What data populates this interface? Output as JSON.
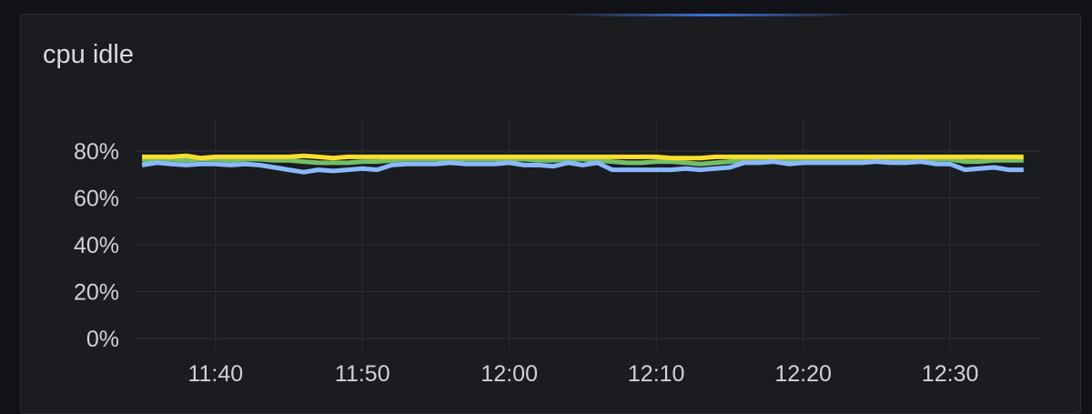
{
  "panel": {
    "title": "cpu idle"
  },
  "chart_data": {
    "type": "line",
    "title": "cpu idle",
    "xlabel": "",
    "ylabel": "",
    "ylim": [
      0,
      80
    ],
    "xlim": [
      "11:34:30",
      "12:36:15"
    ],
    "grid": true,
    "legend": "none",
    "y_ticks": [
      "0%",
      "20%",
      "40%",
      "60%",
      "80%"
    ],
    "y_tick_values": [
      0,
      20,
      40,
      60,
      80
    ],
    "x_ticks": [
      "11:40",
      "11:50",
      "12:00",
      "12:10",
      "12:20",
      "12:30"
    ],
    "x": [
      "11:35",
      "11:36",
      "11:37",
      "11:38",
      "11:39",
      "11:40",
      "11:41",
      "11:42",
      "11:43",
      "11:44",
      "11:45",
      "11:46",
      "11:47",
      "11:48",
      "11:49",
      "11:50",
      "11:51",
      "11:52",
      "11:53",
      "11:54",
      "11:55",
      "11:56",
      "11:57",
      "11:58",
      "11:59",
      "12:00",
      "12:01",
      "12:02",
      "12:03",
      "12:04",
      "12:05",
      "12:06",
      "12:07",
      "12:08",
      "12:09",
      "12:10",
      "12:11",
      "12:12",
      "12:13",
      "12:14",
      "12:15",
      "12:16",
      "12:17",
      "12:18",
      "12:19",
      "12:20",
      "12:21",
      "12:22",
      "12:23",
      "12:24",
      "12:25",
      "12:26",
      "12:27",
      "12:28",
      "12:29",
      "12:30",
      "12:31",
      "12:32",
      "12:33",
      "12:34",
      "12:35"
    ],
    "series": [
      {
        "color": "#73bf69",
        "values": [
          76,
          76.5,
          76.5,
          76,
          76.5,
          76.5,
          76,
          76.5,
          76.5,
          76,
          76,
          75.5,
          75,
          75,
          75,
          75.5,
          75.5,
          76,
          76.5,
          76.5,
          76.5,
          76.5,
          76.5,
          76.5,
          76.5,
          76.5,
          76.5,
          76,
          76,
          76.5,
          76.5,
          76,
          75.5,
          75,
          75,
          75.5,
          75.5,
          75,
          74.5,
          75,
          75.5,
          76,
          76,
          76.5,
          76,
          76.5,
          76.5,
          76.5,
          76.5,
          76.5,
          76.5,
          76.5,
          76.5,
          76.5,
          76.5,
          76.5,
          75.5,
          75.5,
          76,
          76,
          76
        ]
      },
      {
        "color": "#fade2a",
        "values": [
          77.5,
          77.5,
          77.5,
          78,
          77,
          77.5,
          77.5,
          77.5,
          77.5,
          77.5,
          77.5,
          78,
          77.5,
          77,
          77.5,
          77.5,
          77.5,
          77.5,
          77.5,
          77.5,
          77.5,
          77.5,
          77.5,
          77.5,
          77.5,
          77.5,
          77.5,
          77.5,
          77.5,
          77.5,
          77.5,
          77.5,
          77.5,
          77.5,
          77.5,
          77.5,
          77,
          77,
          77,
          77.5,
          77.5,
          77.5,
          77.5,
          77.5,
          77.5,
          77.5,
          77.5,
          77.5,
          77.5,
          77.5,
          77.5,
          77.5,
          77.5,
          77.5,
          77.5,
          77.5,
          77.5,
          77.5,
          77.5,
          77.5,
          77.5
        ]
      },
      {
        "color": "#8ab8ff",
        "values": [
          74,
          75,
          74.5,
          74,
          74.5,
          74.5,
          74,
          74.5,
          74,
          73,
          72,
          71,
          72,
          71.5,
          72,
          72.5,
          72,
          74,
          74.5,
          74.5,
          74.5,
          75,
          74.5,
          74.5,
          74.5,
          75,
          74,
          74,
          73.5,
          75,
          74,
          75,
          72,
          72,
          72,
          72,
          72,
          72.5,
          72,
          72.5,
          73,
          75,
          75,
          75.5,
          74.5,
          75,
          75,
          75,
          75,
          75,
          75.5,
          75,
          75,
          75.5,
          74.5,
          74.5,
          72,
          72.5,
          73,
          72,
          72
        ]
      }
    ]
  }
}
